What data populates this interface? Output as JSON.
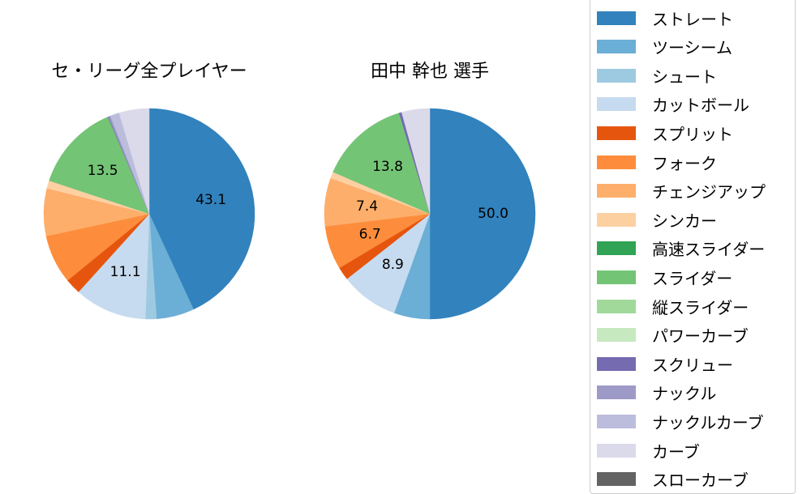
{
  "chart_data": [
    {
      "type": "pie",
      "title": "セ・リーグ全プレイヤー",
      "categories": [
        "ストレート",
        "ツーシーム",
        "シュート",
        "カットボール",
        "スプリット",
        "フォーク",
        "チェンジアップ",
        "シンカー",
        "高速スライダー",
        "スライダー",
        "縦スライダー",
        "パワーカーブ",
        "スクリュー",
        "ナックル",
        "ナックルカーブ",
        "カーブ",
        "スローカーブ"
      ],
      "values": [
        43.1,
        5.8,
        1.7,
        11.1,
        2.4,
        7.5,
        7.3,
        1.2,
        0.0,
        13.5,
        0.0,
        0.0,
        0.1,
        0.3,
        1.4,
        4.6,
        0.0
      ],
      "labels_shown": {
        "ストレート": "43.1",
        "カットボール": "11.1",
        "スライダー": "13.5"
      },
      "start_angle": "top, clockwise"
    },
    {
      "type": "pie",
      "title": "田中 幹也  選手",
      "categories": [
        "ストレート",
        "ツーシーム",
        "シュート",
        "カットボール",
        "スプリット",
        "フォーク",
        "チェンジアップ",
        "シンカー",
        "高速スライダー",
        "スライダー",
        "縦スライダー",
        "パワーカーブ",
        "スクリュー",
        "ナックル",
        "ナックルカーブ",
        "カーブ",
        "スローカーブ"
      ],
      "values": [
        50.0,
        5.5,
        0.0,
        8.9,
        2.0,
        6.7,
        7.4,
        1.0,
        0.0,
        13.8,
        0.0,
        0.0,
        0.4,
        0.0,
        0.0,
        4.3,
        0.0
      ],
      "labels_shown": {
        "ストレート": "50.0",
        "カットボール": "8.9",
        "フォーク": "6.7",
        "チェンジアップ": "7.4",
        "スライダー": "13.8"
      },
      "start_angle": "top, clockwise"
    }
  ],
  "titles": {
    "left": "セ・リーグ全プレイヤー",
    "right": "田中 幹也  選手"
  },
  "legend": [
    {
      "label": "ストレート",
      "color": "#3182bd"
    },
    {
      "label": "ツーシーム",
      "color": "#6baed6"
    },
    {
      "label": "シュート",
      "color": "#9ecae1"
    },
    {
      "label": "カットボール",
      "color": "#c6dbef"
    },
    {
      "label": "スプリット",
      "color": "#e6550d"
    },
    {
      "label": "フォーク",
      "color": "#fd8d3c"
    },
    {
      "label": "チェンジアップ",
      "color": "#fdae6b"
    },
    {
      "label": "シンカー",
      "color": "#fdd0a2"
    },
    {
      "label": "高速スライダー",
      "color": "#31a354"
    },
    {
      "label": "スライダー",
      "color": "#74c476"
    },
    {
      "label": "縦スライダー",
      "color": "#a1d99b"
    },
    {
      "label": "パワーカーブ",
      "color": "#c7e9c0"
    },
    {
      "label": "スクリュー",
      "color": "#756bb1"
    },
    {
      "label": "ナックル",
      "color": "#9e9ac8"
    },
    {
      "label": "ナックルカーブ",
      "color": "#bcbddc"
    },
    {
      "label": "カーブ",
      "color": "#dadaeb"
    },
    {
      "label": "スローカーブ",
      "color": "#636363"
    }
  ]
}
